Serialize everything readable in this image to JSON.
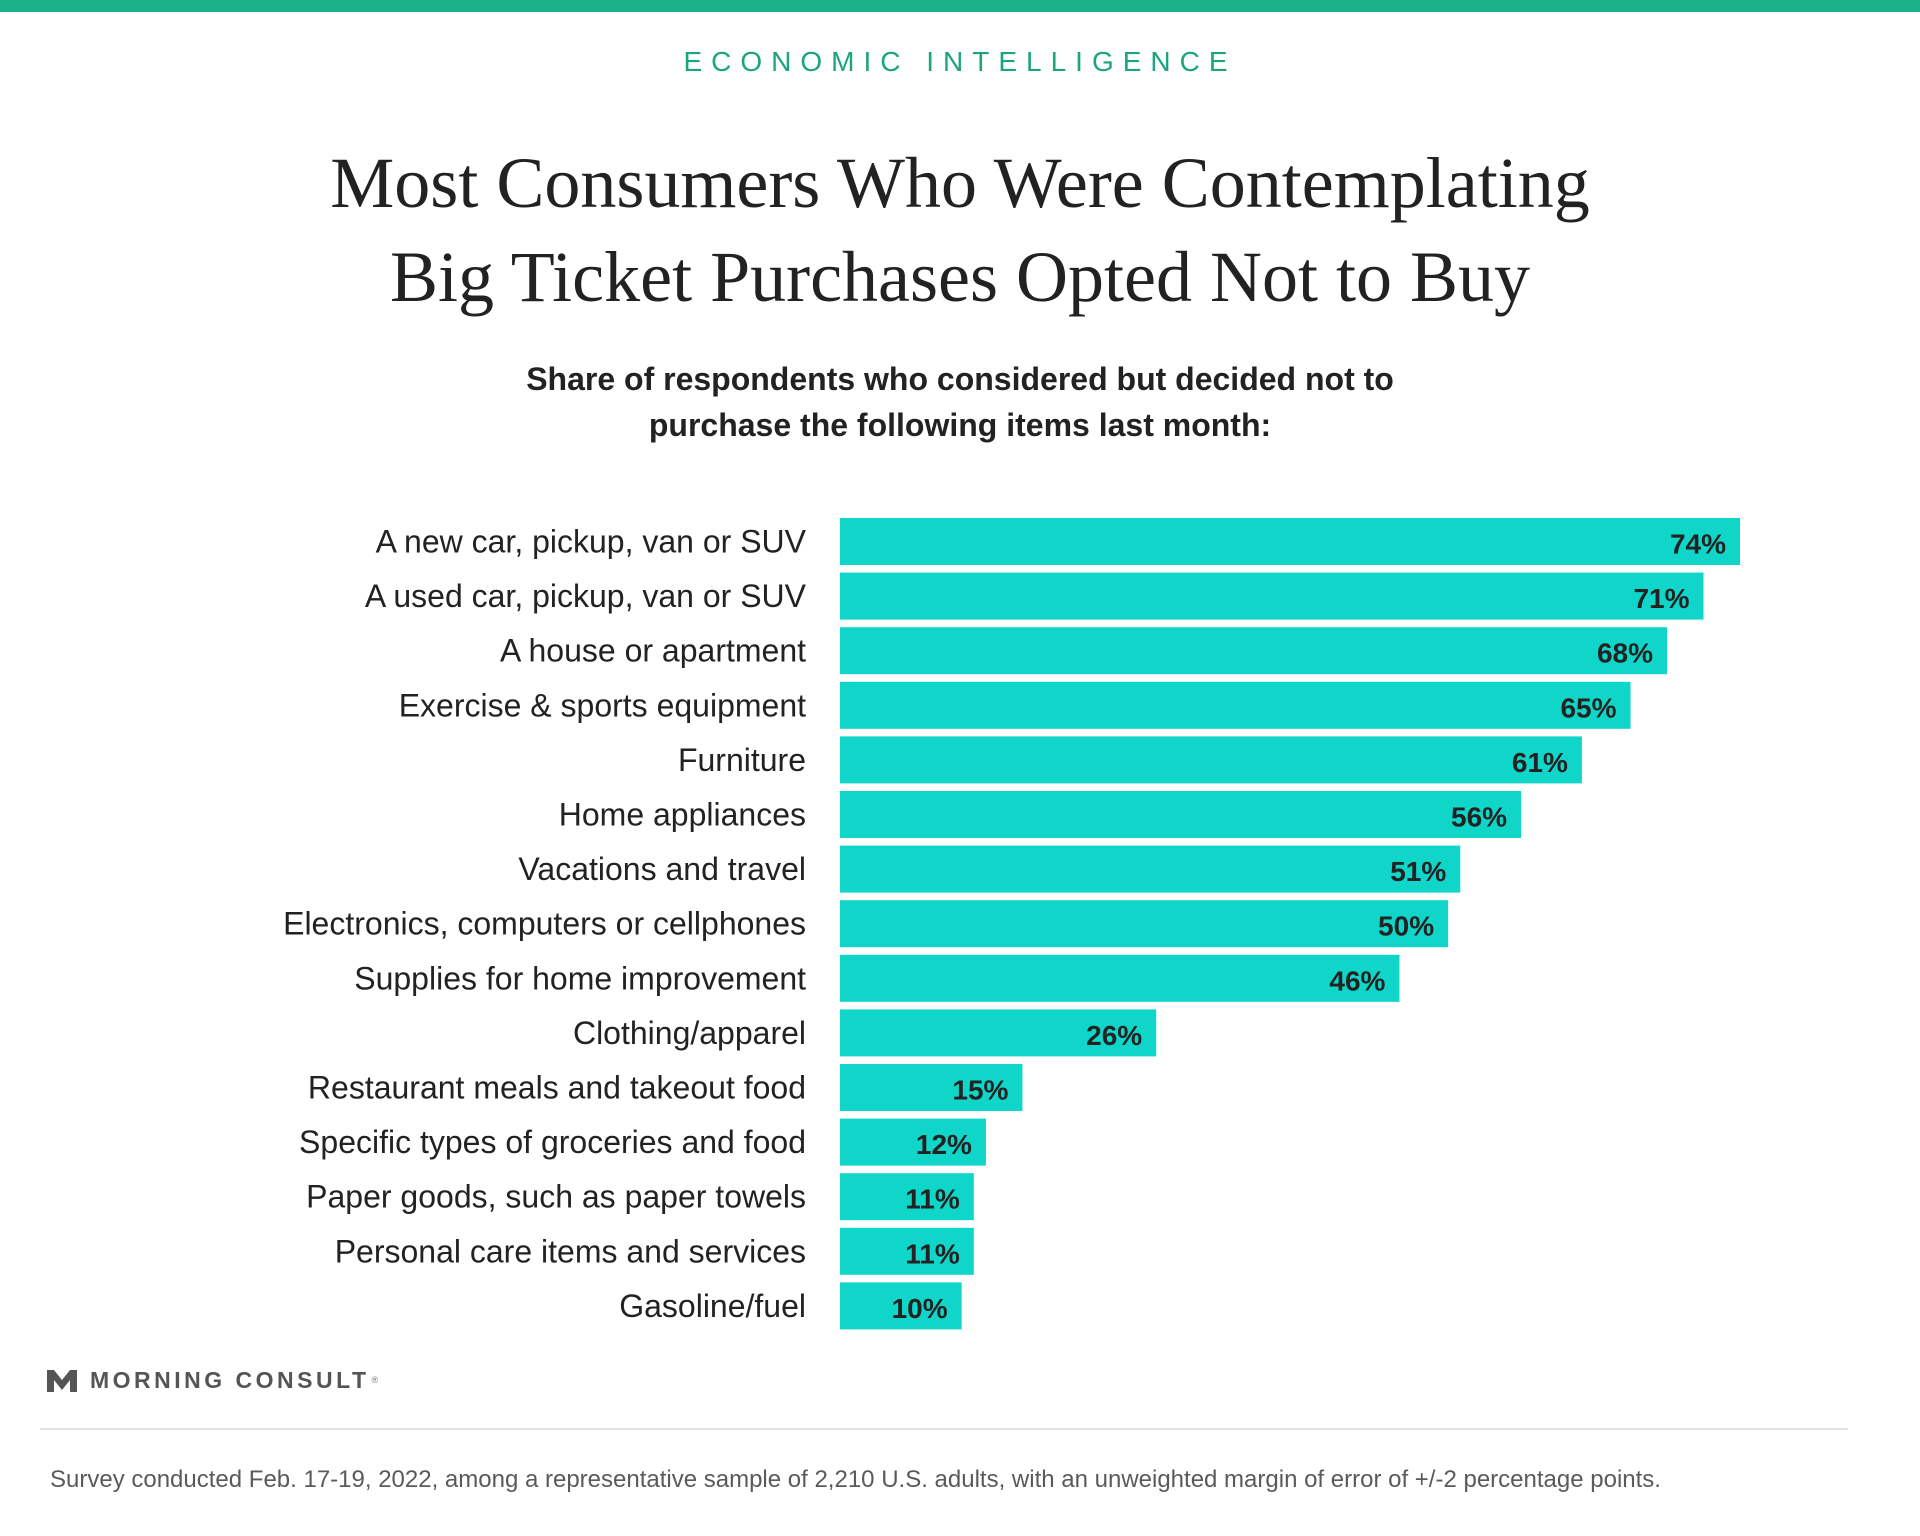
{
  "header": {
    "kicker": "ECONOMIC INTELLIGENCE",
    "title_line1": "Most Consumers Who Were Contemplating",
    "title_line2": "Big Ticket Purchases Opted Not to Buy",
    "subtitle_line1": "Share of respondents who considered but decided not to",
    "subtitle_line2": "purchase the following items last month:"
  },
  "colors": {
    "accent_bar": "#1bb28a",
    "kicker": "#1aa57f",
    "bar": "#10d5c9",
    "text": "#222222"
  },
  "chart_data": {
    "type": "bar",
    "orientation": "horizontal",
    "categories": [
      "A new car, pickup, van or SUV",
      "A used car, pickup, van or SUV",
      "A house or apartment",
      "Exercise & sports equipment",
      "Furniture",
      "Home appliances",
      "Vacations and travel",
      "Electronics, computers or cellphones",
      "Supplies for home improvement",
      "Clothing/apparel",
      "Restaurant meals and takeout food",
      "Specific types of groceries and food",
      "Paper goods, such as paper towels",
      "Personal care items and services",
      "Gasoline/fuel"
    ],
    "values": [
      74,
      71,
      68,
      65,
      61,
      56,
      51,
      50,
      46,
      26,
      15,
      12,
      11,
      11,
      10
    ],
    "value_labels": [
      "74%",
      "71%",
      "68%",
      "65%",
      "61%",
      "56%",
      "51%",
      "50%",
      "46%",
      "26%",
      "15%",
      "12%",
      "11%",
      "11%",
      "10%"
    ],
    "xlim": [
      0,
      74
    ],
    "grid": false,
    "legend": "none"
  },
  "footer": {
    "logo_text": "MORNING CONSULT",
    "logo_mark": "®",
    "logo_icon": "morning-consult-m-logo",
    "note": "Survey conducted Feb. 17-19, 2022, among a representative sample of 2,210 U.S. adults, with an unweighted margin of error of +/-2 percentage points."
  }
}
